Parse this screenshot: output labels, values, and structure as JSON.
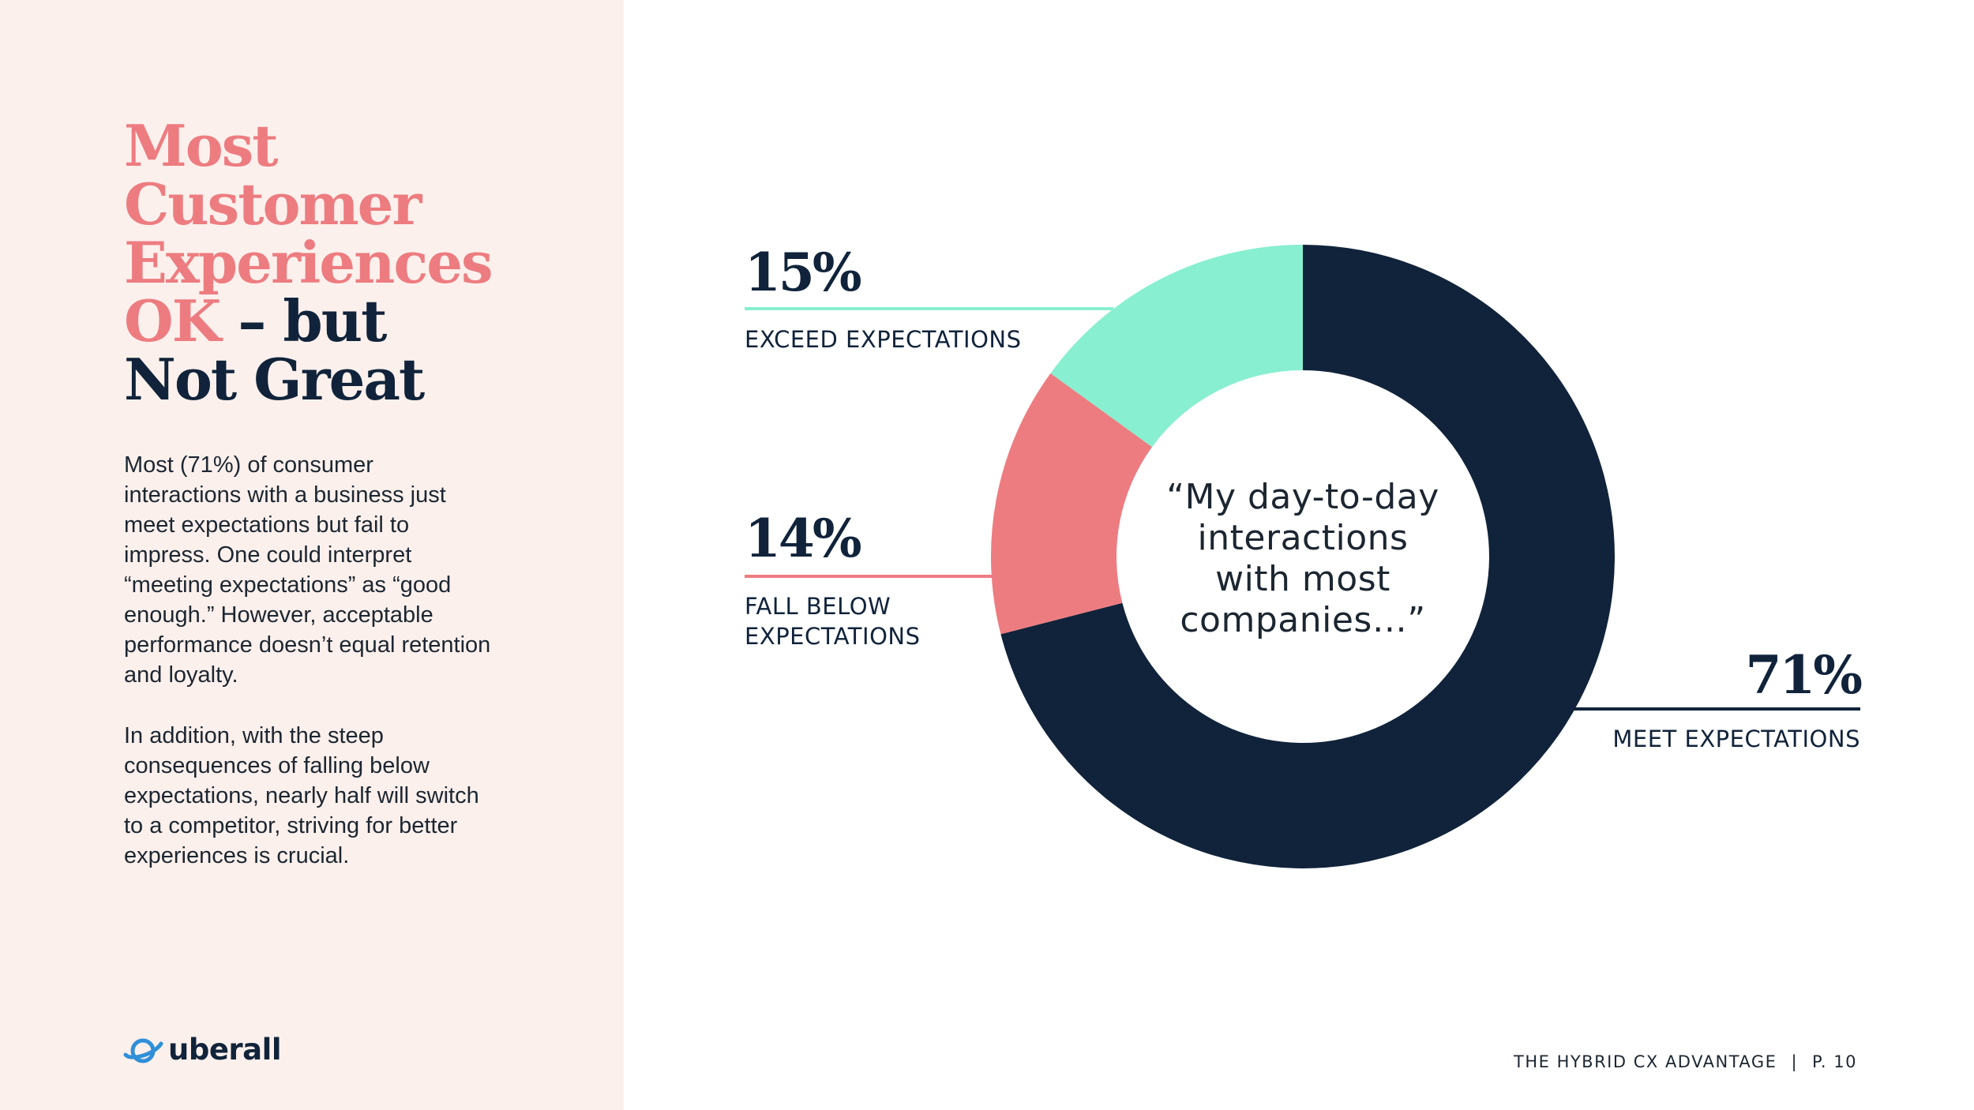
{
  "headline": {
    "line1": "Most",
    "line2": "Customer",
    "line3": "Experiences",
    "line4_pink": "OK",
    "line4_dark": " – but",
    "line5": "Not Great"
  },
  "body": {
    "paragraph1": "Most (71%) of consumer interactions with a business just meet expectations but fail to impress. One could interpret “meeting expectations” as “good enough.” However, acceptable performance doesn’t equal retention and loyalty.",
    "paragraph2": "In addition, with the steep consequences of falling below expectations, nearly half will switch to a competitor, striving for better experiences is crucial."
  },
  "logo": {
    "text": "uberall",
    "icon": "planet-icon"
  },
  "footer": {
    "title": "THE HYBRID CX ADVANTAGE",
    "separator": "|",
    "page": "P. 10"
  },
  "colors": {
    "accent_pink": "#ed7c80",
    "navy": "#10233a",
    "mint": "#88efd0",
    "panel_bg": "#fcf0ec"
  },
  "chart_data": {
    "type": "pie",
    "variant": "donut",
    "center_text": [
      "“My day-to-day",
      "interactions",
      "with most",
      "companies…”"
    ],
    "series": [
      {
        "label_lines": [
          "MEET EXPECTATIONS"
        ],
        "value": 71,
        "percent_label": "71%",
        "color": "#10233a"
      },
      {
        "label_lines": [
          "FALL BELOW",
          "EXPECTATIONS"
        ],
        "value": 14,
        "percent_label": "14%",
        "color": "#ed7c80"
      },
      {
        "label_lines": [
          "EXCEED EXPECTATIONS"
        ],
        "value": 15,
        "percent_label": "15%",
        "color": "#88efd0"
      }
    ]
  }
}
